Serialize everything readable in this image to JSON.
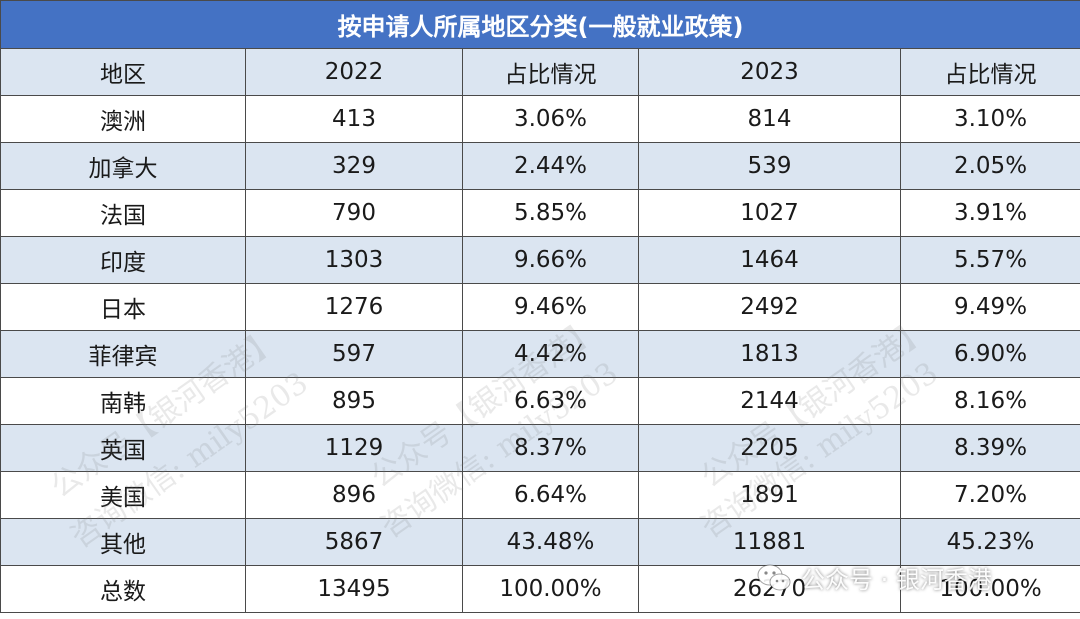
{
  "title": "按申请人所属地区分类(一般就业政策)",
  "headers": [
    "地区",
    "2022",
    "占比情况",
    "2023",
    "占比情况"
  ],
  "rows": [
    [
      "澳洲",
      "413",
      "3.06%",
      "814",
      "3.10%"
    ],
    [
      "加拿大",
      "329",
      "2.44%",
      "539",
      "2.05%"
    ],
    [
      "法国",
      "790",
      "5.85%",
      "1027",
      "3.91%"
    ],
    [
      "印度",
      "1303",
      "9.66%",
      "1464",
      "5.57%"
    ],
    [
      "日本",
      "1276",
      "9.46%",
      "2492",
      "9.49%"
    ],
    [
      "菲律宾",
      "597",
      "4.42%",
      "1813",
      "6.90%"
    ],
    [
      "南韩",
      "895",
      "6.63%",
      "2144",
      "8.16%"
    ],
    [
      "英国",
      "1129",
      "8.37%",
      "2205",
      "8.39%"
    ],
    [
      "美国",
      "896",
      "6.64%",
      "1891",
      "7.20%"
    ],
    [
      "其他",
      "5867",
      "43.48%",
      "11881",
      "45.23%"
    ],
    [
      "总数",
      "13495",
      "100.00%",
      "26270",
      "100.00%"
    ]
  ],
  "watermark": {
    "line1": "公众号【银河香港】",
    "line2": "咨询微信: mily5203"
  },
  "badge": {
    "icon": "wechat-icon",
    "text": "公众号 · 银河香港"
  },
  "colors": {
    "title_bg": "#4472c4",
    "header_bg": "#dbe5f1",
    "stripe_bg": "#dbe5f1"
  }
}
